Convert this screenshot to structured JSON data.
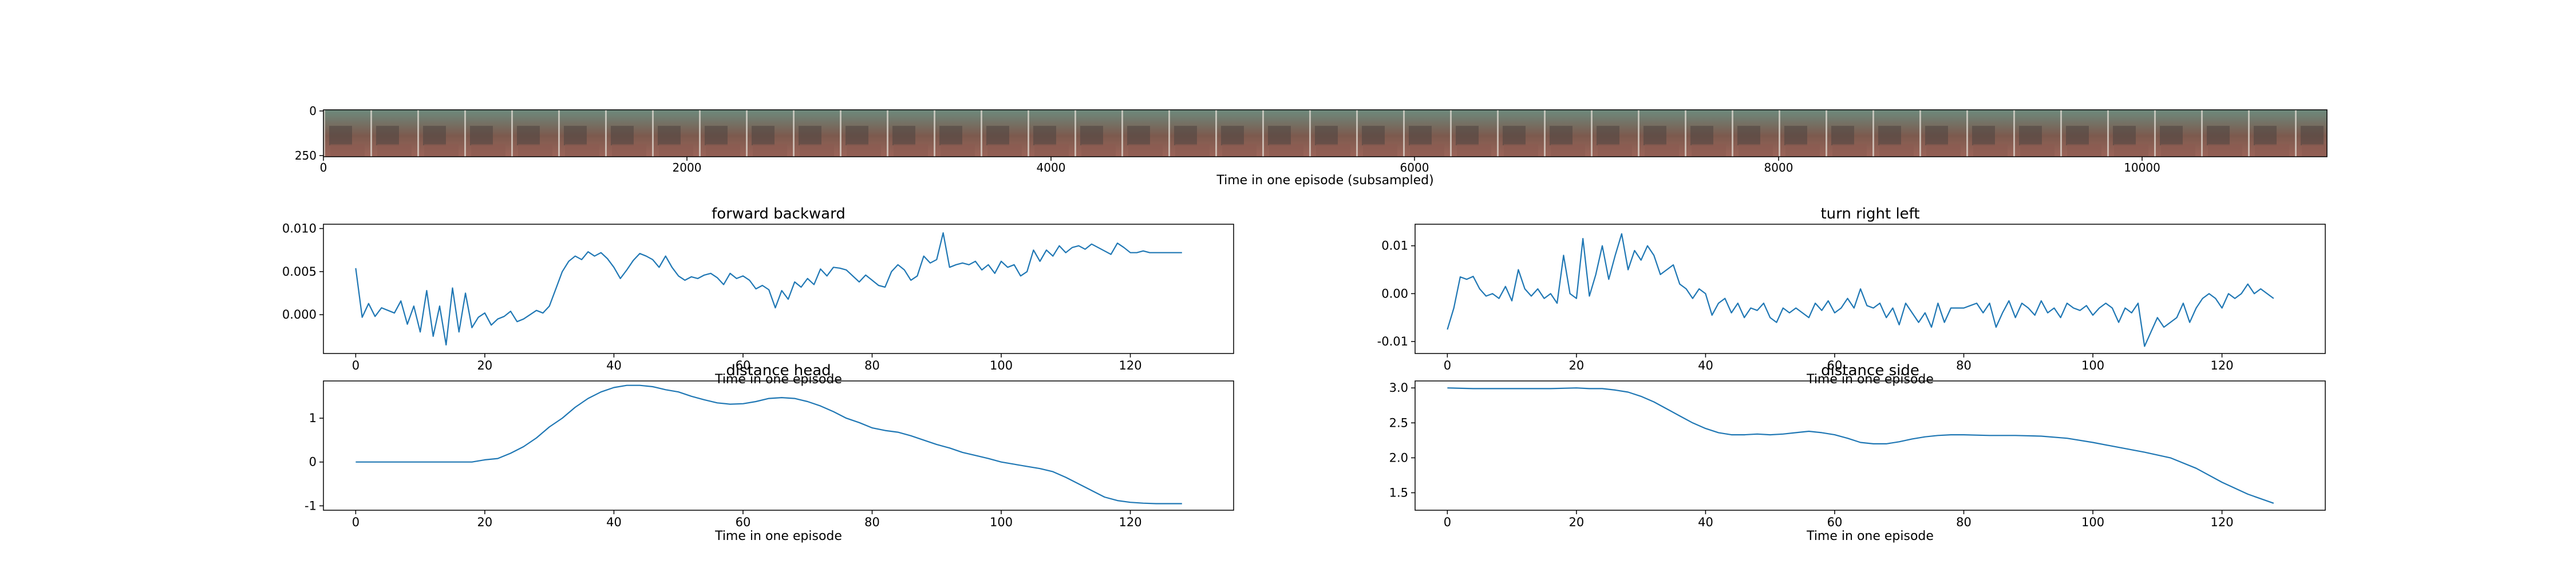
{
  "colors": {
    "line": "#1f77b4",
    "axis": "#000000",
    "background": "#ffffff"
  },
  "strip": {
    "image_description_icon": "episode-frames-strip",
    "xlabel": "Time in one episode (subsampled)",
    "xticks": [
      "0",
      "2000",
      "4000",
      "6000",
      "8000",
      "10000"
    ],
    "yticks": [
      "0",
      "250"
    ]
  },
  "chart_data": [
    {
      "type": "line",
      "title": "forward backward",
      "xlabel": "Time in one episode",
      "ylabel": "",
      "xlim": [
        -5,
        136
      ],
      "ylim": [
        -0.0045,
        0.0105
      ],
      "xticks": [
        "0",
        "20",
        "40",
        "60",
        "80",
        "100",
        "120"
      ],
      "yticks": [
        "0.000",
        "0.005",
        "0.010"
      ],
      "x": [
        0,
        1,
        2,
        3,
        4,
        5,
        6,
        7,
        8,
        9,
        10,
        11,
        12,
        13,
        14,
        15,
        16,
        17,
        18,
        19,
        20,
        21,
        22,
        23,
        24,
        25,
        26,
        27,
        28,
        29,
        30,
        31,
        32,
        33,
        34,
        35,
        36,
        37,
        38,
        39,
        40,
        41,
        42,
        43,
        44,
        45,
        46,
        47,
        48,
        49,
        50,
        51,
        52,
        53,
        54,
        55,
        56,
        57,
        58,
        59,
        60,
        61,
        62,
        63,
        64,
        65,
        66,
        67,
        68,
        69,
        70,
        71,
        72,
        73,
        74,
        75,
        76,
        77,
        78,
        79,
        80,
        81,
        82,
        83,
        84,
        85,
        86,
        87,
        88,
        89,
        90,
        91,
        92,
        93,
        94,
        95,
        96,
        97,
        98,
        99,
        100,
        101,
        102,
        103,
        104,
        105,
        106,
        107,
        108,
        109,
        110,
        111,
        112,
        113,
        114,
        115,
        116,
        117,
        118,
        119,
        120,
        121,
        122,
        123,
        124,
        125,
        126,
        127,
        128
      ],
      "series": [
        {
          "values": [
            0.0054,
            -0.0003,
            0.0013,
            -0.0002,
            0.0008,
            0.0005,
            0.0002,
            0.0016,
            -0.0011,
            0.001,
            -0.002,
            0.0028,
            -0.0025,
            0.001,
            -0.0035,
            0.0031,
            -0.002,
            0.0025,
            -0.0015,
            -0.0003,
            0.0002,
            -0.0012,
            -0.0005,
            -0.0002,
            0.0004,
            -0.0008,
            -0.0005,
            0.0,
            0.0005,
            0.0002,
            0.001,
            0.003,
            0.005,
            0.0062,
            0.0068,
            0.0064,
            0.0073,
            0.0068,
            0.0072,
            0.0065,
            0.0055,
            0.0042,
            0.0052,
            0.0063,
            0.0071,
            0.0068,
            0.0064,
            0.0055,
            0.0068,
            0.0055,
            0.0045,
            0.004,
            0.0044,
            0.0042,
            0.0046,
            0.0048,
            0.0043,
            0.0035,
            0.0048,
            0.0042,
            0.0045,
            0.004,
            0.003,
            0.0034,
            0.0029,
            0.0008,
            0.0028,
            0.0018,
            0.0038,
            0.0032,
            0.0042,
            0.0035,
            0.0053,
            0.0045,
            0.0055,
            0.0054,
            0.0052,
            0.0045,
            0.0038,
            0.0046,
            0.004,
            0.0034,
            0.0032,
            0.005,
            0.0058,
            0.0052,
            0.004,
            0.0045,
            0.0068,
            0.006,
            0.0064,
            0.0095,
            0.0055,
            0.0058,
            0.006,
            0.0058,
            0.0062,
            0.0052,
            0.0058,
            0.0048,
            0.0062,
            0.0055,
            0.0058,
            0.0045,
            0.005,
            0.0075,
            0.0062,
            0.0075,
            0.0068,
            0.008,
            0.0072,
            0.0078,
            0.008,
            0.0076,
            0.0082,
            0.0078,
            0.0074,
            0.007,
            0.0083,
            0.0078,
            0.0072,
            0.0072,
            0.0074,
            0.0072,
            0.0072,
            0.0072,
            0.0072,
            0.0072,
            0.0072
          ]
        }
      ]
    },
    {
      "type": "line",
      "title": "turn right left",
      "xlabel": "Time in one episode",
      "ylabel": "",
      "xlim": [
        -5,
        136
      ],
      "ylim": [
        -0.0125,
        0.0145
      ],
      "xticks": [
        "0",
        "20",
        "40",
        "60",
        "80",
        "100",
        "120"
      ],
      "yticks": [
        "-0.01",
        "0.00",
        "0.01"
      ],
      "x": [
        0,
        1,
        2,
        3,
        4,
        5,
        6,
        7,
        8,
        9,
        10,
        11,
        12,
        13,
        14,
        15,
        16,
        17,
        18,
        19,
        20,
        21,
        22,
        23,
        24,
        25,
        26,
        27,
        28,
        29,
        30,
        31,
        32,
        33,
        34,
        35,
        36,
        37,
        38,
        39,
        40,
        41,
        42,
        43,
        44,
        45,
        46,
        47,
        48,
        49,
        50,
        51,
        52,
        53,
        54,
        55,
        56,
        57,
        58,
        59,
        60,
        61,
        62,
        63,
        64,
        65,
        66,
        67,
        68,
        69,
        70,
        71,
        72,
        73,
        74,
        75,
        76,
        77,
        78,
        79,
        80,
        81,
        82,
        83,
        84,
        85,
        86,
        87,
        88,
        89,
        90,
        91,
        92,
        93,
        94,
        95,
        96,
        97,
        98,
        99,
        100,
        101,
        102,
        103,
        104,
        105,
        106,
        107,
        108,
        109,
        110,
        111,
        112,
        113,
        114,
        115,
        116,
        117,
        118,
        119,
        120,
        121,
        122,
        123,
        124,
        125,
        126,
        127,
        128
      ],
      "series": [
        {
          "values": [
            -0.0075,
            -0.003,
            0.0035,
            0.003,
            0.0036,
            0.001,
            -0.0005,
            0.0,
            -0.001,
            0.0015,
            -0.0015,
            0.005,
            0.001,
            -0.0005,
            0.001,
            -0.001,
            0.0,
            -0.002,
            0.008,
            0.0,
            -0.001,
            0.0115,
            -0.0005,
            0.004,
            0.01,
            0.003,
            0.008,
            0.0125,
            0.005,
            0.009,
            0.007,
            0.01,
            0.008,
            0.004,
            0.005,
            0.006,
            0.002,
            0.001,
            -0.001,
            0.001,
            0.0,
            -0.0045,
            -0.002,
            -0.001,
            -0.004,
            -0.002,
            -0.005,
            -0.003,
            -0.0035,
            -0.002,
            -0.005,
            -0.006,
            -0.003,
            -0.004,
            -0.003,
            -0.004,
            -0.005,
            -0.002,
            -0.0035,
            -0.0015,
            -0.004,
            -0.003,
            -0.001,
            -0.003,
            0.001,
            -0.0025,
            -0.003,
            -0.002,
            -0.005,
            -0.003,
            -0.0065,
            -0.002,
            -0.004,
            -0.006,
            -0.004,
            -0.007,
            -0.002,
            -0.006,
            -0.003,
            -0.003,
            -0.003,
            -0.0025,
            -0.002,
            -0.004,
            -0.002,
            -0.007,
            -0.004,
            -0.0015,
            -0.005,
            -0.002,
            -0.003,
            -0.0045,
            -0.0015,
            -0.004,
            -0.003,
            -0.005,
            -0.002,
            -0.003,
            -0.0035,
            -0.0025,
            -0.0045,
            -0.003,
            -0.002,
            -0.003,
            -0.006,
            -0.003,
            -0.004,
            -0.002,
            -0.011,
            -0.008,
            -0.005,
            -0.007,
            -0.006,
            -0.005,
            -0.002,
            -0.006,
            -0.003,
            -0.001,
            0.0,
            -0.001,
            -0.003,
            0.0,
            -0.001,
            0.0,
            0.002,
            0.0,
            0.001,
            0.0,
            -0.001
          ]
        }
      ]
    },
    {
      "type": "line",
      "title": "distance head",
      "xlabel": "Time in one episode",
      "ylabel": "",
      "xlim": [
        -5,
        136
      ],
      "ylim": [
        -1.1,
        1.85
      ],
      "xticks": [
        "0",
        "20",
        "40",
        "60",
        "80",
        "100",
        "120"
      ],
      "yticks": [
        "-1",
        "0",
        "1"
      ],
      "x": [
        0,
        4,
        8,
        12,
        16,
        18,
        20,
        22,
        24,
        26,
        28,
        30,
        32,
        34,
        36,
        38,
        40,
        42,
        44,
        46,
        48,
        50,
        52,
        54,
        56,
        58,
        60,
        62,
        64,
        66,
        68,
        70,
        72,
        74,
        76,
        78,
        80,
        82,
        84,
        86,
        88,
        90,
        92,
        94,
        96,
        98,
        100,
        102,
        104,
        106,
        108,
        110,
        112,
        114,
        116,
        118,
        120,
        122,
        124,
        126,
        128
      ],
      "series": [
        {
          "values": [
            0.0,
            0.0,
            0.0,
            0.0,
            0.0,
            0.0,
            0.05,
            0.08,
            0.2,
            0.35,
            0.55,
            0.8,
            1.0,
            1.25,
            1.45,
            1.6,
            1.7,
            1.75,
            1.75,
            1.72,
            1.65,
            1.6,
            1.5,
            1.42,
            1.35,
            1.32,
            1.33,
            1.38,
            1.45,
            1.47,
            1.45,
            1.38,
            1.28,
            1.15,
            1.0,
            0.9,
            0.78,
            0.72,
            0.68,
            0.6,
            0.5,
            0.4,
            0.32,
            0.22,
            0.15,
            0.08,
            0.0,
            -0.05,
            -0.1,
            -0.15,
            -0.22,
            -0.35,
            -0.5,
            -0.65,
            -0.8,
            -0.88,
            -0.92,
            -0.94,
            -0.95,
            -0.95,
            -0.95
          ]
        }
      ]
    },
    {
      "type": "line",
      "title": "distance side",
      "xlabel": "Time in one episode",
      "ylabel": "",
      "xlim": [
        -5,
        136
      ],
      "ylim": [
        1.25,
        3.1
      ],
      "xticks": [
        "0",
        "20",
        "40",
        "60",
        "80",
        "100",
        "120"
      ],
      "yticks": [
        "1.5",
        "2.0",
        "2.5",
        "3.0"
      ],
      "x": [
        0,
        4,
        8,
        12,
        16,
        20,
        22,
        24,
        26,
        28,
        30,
        32,
        34,
        36,
        38,
        40,
        42,
        44,
        46,
        48,
        50,
        52,
        54,
        56,
        58,
        60,
        62,
        64,
        66,
        68,
        70,
        72,
        74,
        76,
        78,
        80,
        84,
        88,
        92,
        96,
        100,
        104,
        108,
        112,
        116,
        120,
        124,
        128
      ],
      "series": [
        {
          "values": [
            3.0,
            2.99,
            2.99,
            2.99,
            2.99,
            3.0,
            2.99,
            2.99,
            2.97,
            2.94,
            2.88,
            2.8,
            2.7,
            2.6,
            2.5,
            2.42,
            2.36,
            2.33,
            2.33,
            2.34,
            2.33,
            2.34,
            2.36,
            2.38,
            2.36,
            2.33,
            2.28,
            2.22,
            2.2,
            2.2,
            2.23,
            2.27,
            2.3,
            2.32,
            2.33,
            2.33,
            2.32,
            2.32,
            2.31,
            2.28,
            2.22,
            2.15,
            2.08,
            2.0,
            1.85,
            1.65,
            1.48,
            1.35
          ]
        }
      ]
    }
  ]
}
